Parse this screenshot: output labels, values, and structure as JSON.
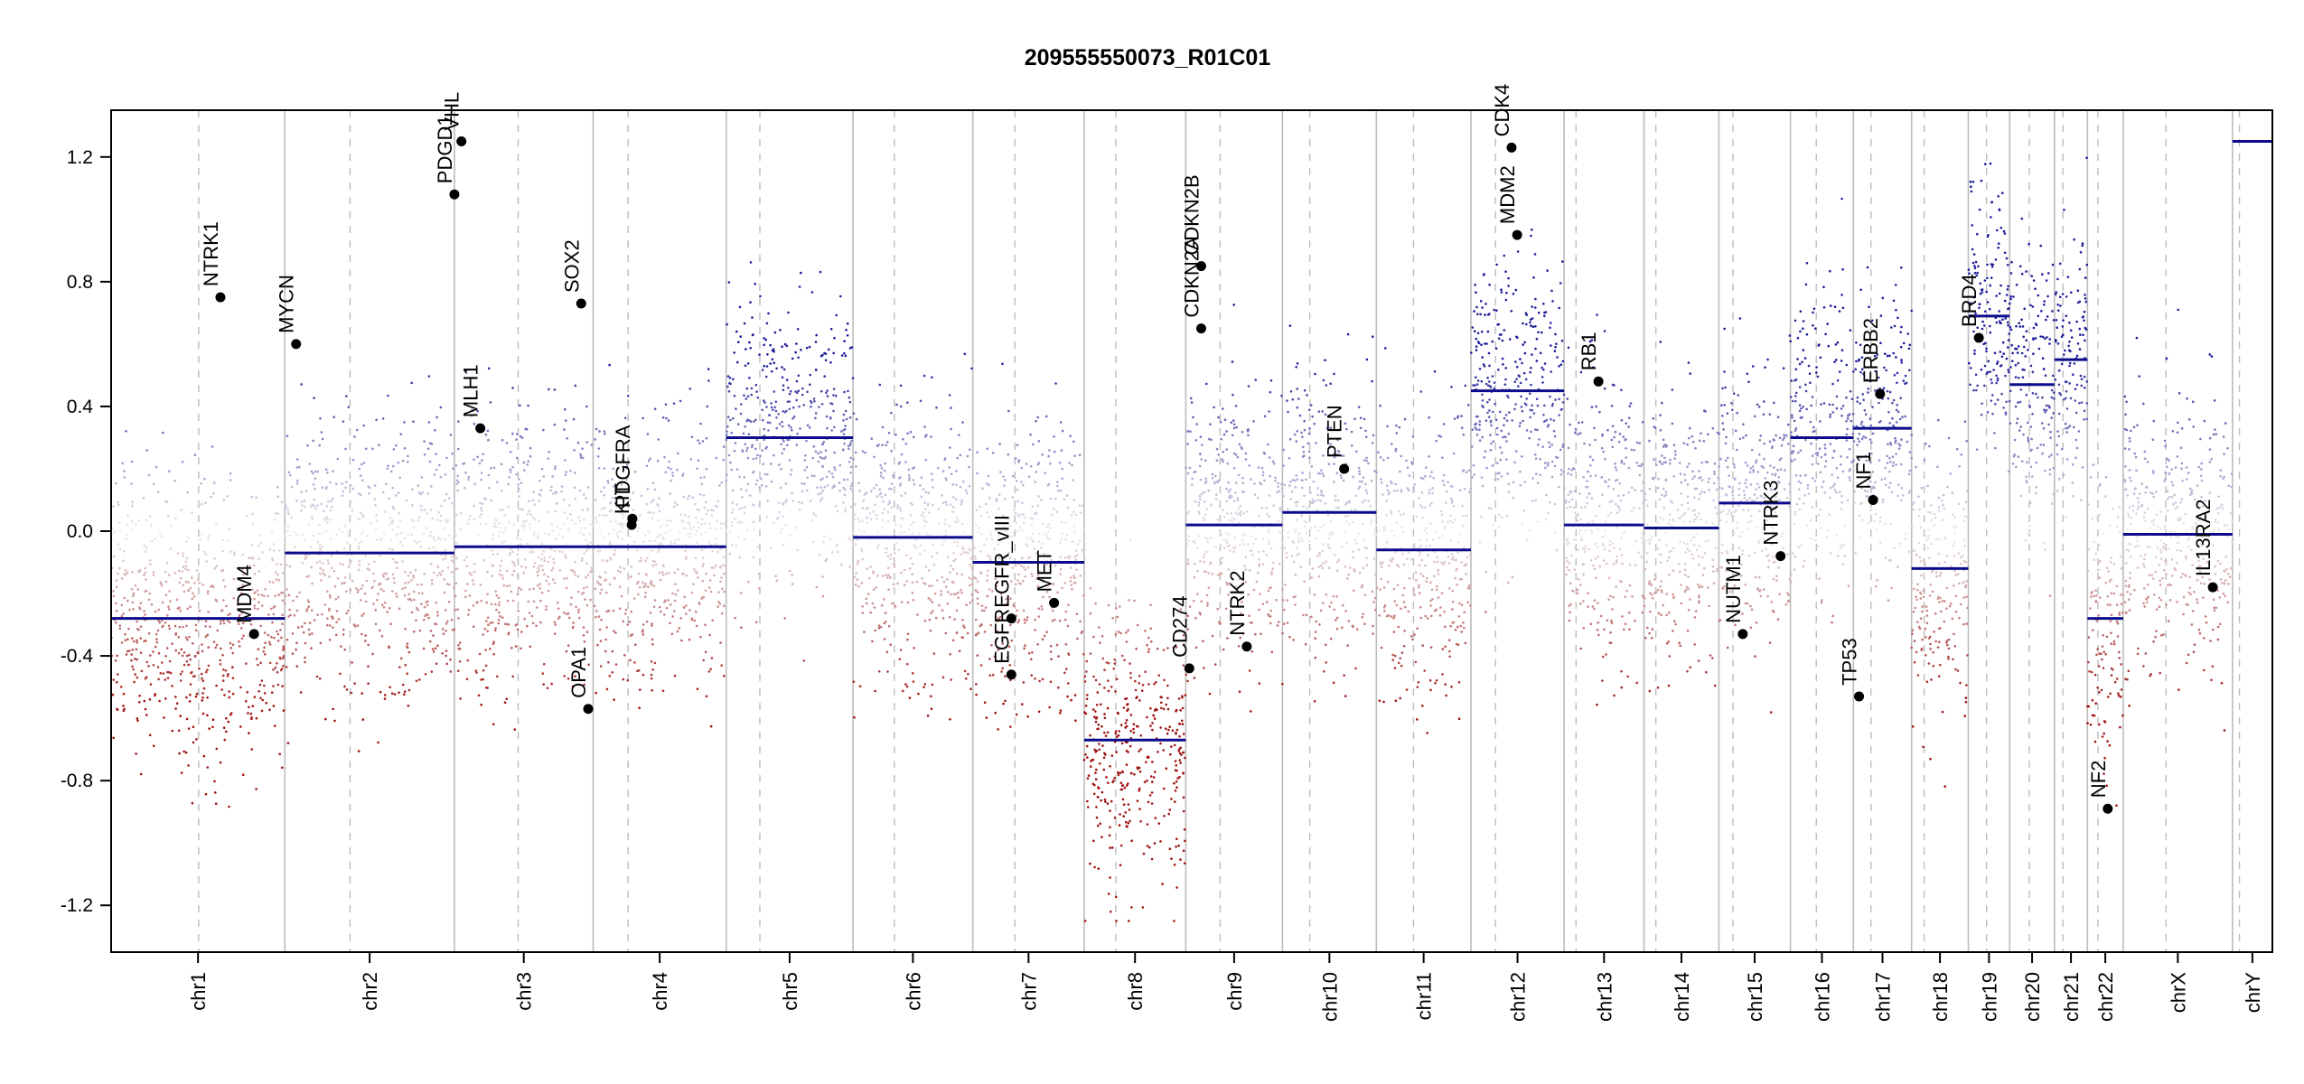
{
  "chart_data": {
    "type": "scatter",
    "title": "209555550073_R01C01",
    "ylim": [
      -1.35,
      1.35
    ],
    "yticks": [
      -1.2,
      -0.8,
      -0.4,
      0.0,
      0.4,
      0.8,
      1.2
    ],
    "ytick_labels": [
      "-1.2",
      "-0.8",
      "-0.4",
      "0.0",
      "0.4",
      "0.8",
      "1.2"
    ],
    "clip_value": 1.25,
    "colors": {
      "gain": "#1a1a9a",
      "loss": "#a01010",
      "segment": "#0b0b8c",
      "boundary": "#bcbcbc",
      "gene_point": "#000000"
    },
    "chromosomes": [
      {
        "name": "chr1",
        "start": 0,
        "end": 248,
        "centromere": 125,
        "segment": -0.28,
        "label": "chr1"
      },
      {
        "name": "chr2",
        "start": 248,
        "end": 490,
        "centromere": 341,
        "segment": -0.07,
        "label": "chr2"
      },
      {
        "name": "chr3",
        "start": 490,
        "end": 688,
        "centromere": 581,
        "segment": -0.05,
        "label": "chr3"
      },
      {
        "name": "chr4",
        "start": 688,
        "end": 878,
        "centromere": 738,
        "segment": -0.05,
        "label": "chr4"
      },
      {
        "name": "chr5",
        "start": 878,
        "end": 1059,
        "centromere": 926,
        "segment": 0.3,
        "label": "chr5"
      },
      {
        "name": "chr6",
        "start": 1059,
        "end": 1230,
        "centromere": 1118,
        "segment": -0.02,
        "label": "chr6"
      },
      {
        "name": "chr7",
        "start": 1230,
        "end": 1389,
        "centromere": 1290,
        "segment": -0.1,
        "label": "chr7"
      },
      {
        "name": "chr8",
        "start": 1389,
        "end": 1534,
        "centromere": 1434,
        "segment": -0.67,
        "label": "chr8"
      },
      {
        "name": "chr9",
        "start": 1534,
        "end": 1672,
        "centromere": 1583,
        "segment": 0.02,
        "label": "chr9"
      },
      {
        "name": "chr10",
        "start": 1672,
        "end": 1806,
        "centromere": 1711,
        "segment": 0.06,
        "label": "chr10"
      },
      {
        "name": "chr11",
        "start": 1806,
        "end": 1941,
        "centromere": 1859,
        "segment": -0.06,
        "label": "chr11"
      },
      {
        "name": "chr12",
        "start": 1941,
        "end": 2074,
        "centromere": 1976,
        "segment": 0.45,
        "label": "chr12"
      },
      {
        "name": "chr13",
        "start": 2074,
        "end": 2188,
        "centromere": 2091,
        "segment": 0.02,
        "label": "chr13"
      },
      {
        "name": "chr14",
        "start": 2188,
        "end": 2295,
        "centromere": 2205,
        "segment": 0.01,
        "label": "chr14"
      },
      {
        "name": "chr15",
        "start": 2295,
        "end": 2397,
        "centromere": 2315,
        "segment": 0.09,
        "label": "chr15"
      },
      {
        "name": "chr16",
        "start": 2397,
        "end": 2487,
        "centromere": 2434,
        "segment": 0.3,
        "label": "chr16"
      },
      {
        "name": "chr17",
        "start": 2487,
        "end": 2570,
        "centromere": 2512,
        "segment": 0.33,
        "label": "chr17"
      },
      {
        "name": "chr18",
        "start": 2570,
        "end": 2651,
        "centromere": 2588,
        "segment": -0.12,
        "label": "chr18"
      },
      {
        "name": "chr19",
        "start": 2651,
        "end": 2710,
        "centromere": 2677,
        "segment": 0.69,
        "label": "chr19"
      },
      {
        "name": "chr20",
        "start": 2710,
        "end": 2774,
        "centromere": 2738,
        "segment": 0.47,
        "label": "chr20"
      },
      {
        "name": "chr21",
        "start": 2774,
        "end": 2821,
        "centromere": 2786,
        "segment": 0.55,
        "label": "chr21"
      },
      {
        "name": "chr22",
        "start": 2821,
        "end": 2872,
        "centromere": 2836,
        "segment": -0.28,
        "label": "chr22"
      },
      {
        "name": "chrX",
        "start": 2872,
        "end": 3028,
        "centromere": 2933,
        "segment": -0.01,
        "label": "chrX"
      },
      {
        "name": "chrY",
        "start": 3028,
        "end": 3085,
        "centromere": 3038,
        "segment": 1.25,
        "label": "chrY"
      }
    ],
    "genes": [
      {
        "name": "NTRK1",
        "chrom": "chr1",
        "pos": 156,
        "value": 0.75
      },
      {
        "name": "MDM4",
        "chrom": "chr1",
        "pos": 204,
        "value": -0.33
      },
      {
        "name": "MYCN",
        "chrom": "chr2",
        "pos": 264,
        "value": 0.6
      },
      {
        "name": "VHL",
        "chrom": "chr3",
        "pos": 500,
        "value": 1.25
      },
      {
        "name": "PDGD1",
        "chrom": "chr3",
        "pos": 490,
        "value": 1.08
      },
      {
        "name": "MLH1",
        "chrom": "chr3",
        "pos": 527,
        "value": 0.33
      },
      {
        "name": "SOX2",
        "chrom": "chr3",
        "pos": 671,
        "value": 0.73
      },
      {
        "name": "OPA1",
        "chrom": "chr3",
        "pos": 681,
        "value": -0.57
      },
      {
        "name": "KIT",
        "chrom": "chr4",
        "pos": 743,
        "value": 0.02
      },
      {
        "name": "PDGFRA",
        "chrom": "chr4",
        "pos": 744,
        "value": 0.04
      },
      {
        "name": "EGFR_vIII",
        "chrom": "chr7",
        "pos": 1285,
        "value": -0.28
      },
      {
        "name": "EGFR",
        "chrom": "chr7",
        "pos": 1285,
        "value": -0.46
      },
      {
        "name": "MET",
        "chrom": "chr7",
        "pos": 1346,
        "value": -0.23
      },
      {
        "name": "CD274",
        "chrom": "chr9",
        "pos": 1539,
        "value": -0.44
      },
      {
        "name": "CDKN2A",
        "chrom": "chr9",
        "pos": 1556,
        "value": 0.65
      },
      {
        "name": "CDKN2B",
        "chrom": "chr9",
        "pos": 1556,
        "value": 0.85
      },
      {
        "name": "NTRK2",
        "chrom": "chr9",
        "pos": 1621,
        "value": -0.37
      },
      {
        "name": "PTEN",
        "chrom": "chr10",
        "pos": 1760,
        "value": 0.2
      },
      {
        "name": "CDK4",
        "chrom": "chr12",
        "pos": 1999,
        "value": 1.23
      },
      {
        "name": "MDM2",
        "chrom": "chr12",
        "pos": 2007,
        "value": 0.95
      },
      {
        "name": "RB1",
        "chrom": "chr13",
        "pos": 2123,
        "value": 0.48
      },
      {
        "name": "NUTM1",
        "chrom": "chr15",
        "pos": 2329,
        "value": -0.33
      },
      {
        "name": "NTRK3",
        "chrom": "chr15",
        "pos": 2383,
        "value": -0.08
      },
      {
        "name": "TP53",
        "chrom": "chr17",
        "pos": 2495,
        "value": -0.53
      },
      {
        "name": "NF1",
        "chrom": "chr17",
        "pos": 2515,
        "value": 0.1
      },
      {
        "name": "ERBB2",
        "chrom": "chr17",
        "pos": 2525,
        "value": 0.44
      },
      {
        "name": "BRD4",
        "chrom": "chr19",
        "pos": 2666,
        "value": 0.62
      },
      {
        "name": "NF2",
        "chrom": "chr22",
        "pos": 2850,
        "value": -0.89
      },
      {
        "name": "IL13RA2",
        "chrom": "chrX",
        "pos": 3000,
        "value": -0.18
      }
    ],
    "gene_labels": {
      "NTRK1": "NTRK1",
      "MDM4": "MDM4",
      "MYCN": "MYCN",
      "VHL": "VHL",
      "PDGD1": "PDGD1",
      "MLH1": "MLH1",
      "SOX2": "SOX2",
      "OPA1": "OPA1",
      "KIT": "KIT",
      "PDGFRA": "PDGFRA",
      "EGFR_vIII": "EGFR_vIII",
      "EGFR": "EGFR",
      "MET": "MET",
      "CD274": "CD274",
      "CDKN2A": "CDKN2A",
      "CDKN2B": "CDKN2B",
      "NTRK2": "NTRK2",
      "PTEN": "PTEN",
      "CDK4": "CDK4",
      "MDM2": "MDM2",
      "RB1": "RB1",
      "NUTM1": "NUTM1",
      "NTRK3": "NTRK3",
      "TP53": "TP53",
      "NF1": "NF1",
      "ERBB2": "ERBB2",
      "BRD4": "BRD4",
      "NF2": "NF2",
      "IL13RA2": "IL13RA2"
    }
  }
}
